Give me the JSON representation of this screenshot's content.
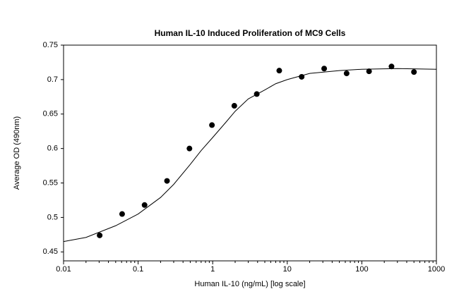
{
  "chart_data": {
    "type": "scatter",
    "title": "Human IL-10 Induced Proliferation of MC9 Cells",
    "x_label": "Human IL-10 (ng/mL) [log scale]",
    "y_label": "Average OD (490nm)",
    "x_log": true,
    "xlim": [
      0.01,
      1000
    ],
    "xticks": [
      0.01,
      0.1,
      1,
      10,
      100,
      1000
    ],
    "ylim": [
      0.437,
      0.75
    ],
    "yticks": [
      0.45,
      0.5,
      0.55,
      0.6,
      0.65,
      0.7,
      0.75
    ],
    "grid": false,
    "series": [
      {
        "type": "scatter",
        "color": "#000000",
        "x": [
          0.0305,
          0.061,
          0.122,
          0.244,
          0.488,
          0.977,
          1.95,
          3.9,
          7.81,
          15.6,
          31.25,
          62.5,
          125,
          250,
          500
        ],
        "values": [
          0.474,
          0.505,
          0.518,
          0.553,
          0.6,
          0.634,
          0.662,
          0.679,
          0.713,
          0.704,
          0.716,
          0.709,
          0.712,
          0.719,
          0.711
        ]
      },
      {
        "type": "line",
        "color": "#000000",
        "x": [
          0.01,
          0.02,
          0.05,
          0.1,
          0.2,
          0.3,
          0.5,
          0.7,
          1,
          1.5,
          2,
          3,
          5,
          7,
          10,
          20,
          50,
          100,
          300,
          1000
        ],
        "values": [
          0.465,
          0.471,
          0.488,
          0.505,
          0.529,
          0.548,
          0.577,
          0.597,
          0.616,
          0.638,
          0.654,
          0.672,
          0.685,
          0.694,
          0.7,
          0.709,
          0.713,
          0.715,
          0.716,
          0.715
        ]
      }
    ]
  }
}
